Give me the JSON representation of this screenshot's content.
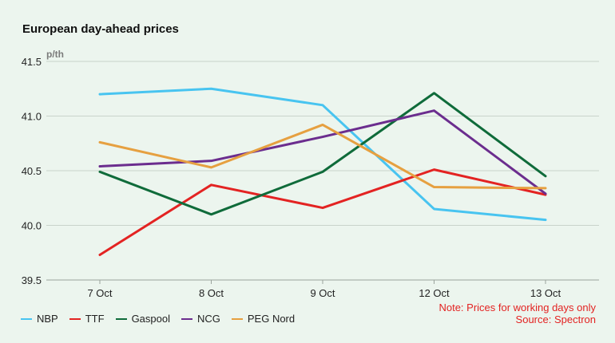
{
  "chart_data": {
    "type": "line",
    "title": "European day-ahead prices",
    "unit": "p/th",
    "categories": [
      "7 Oct",
      "8 Oct",
      "9 Oct",
      "12 Oct",
      "13 Oct"
    ],
    "ylim": [
      39.5,
      41.5
    ],
    "yticks": [
      "39.5",
      "40.0",
      "40.5",
      "41.0",
      "41.5"
    ],
    "grid": true,
    "legend_position": "bottom-left",
    "series": [
      {
        "name": "NBP",
        "color": "#48c4f0",
        "values": [
          41.2,
          41.25,
          41.1,
          40.15,
          40.05
        ]
      },
      {
        "name": "TTF",
        "color": "#e32322",
        "values": [
          39.73,
          40.37,
          40.16,
          40.51,
          40.28
        ]
      },
      {
        "name": "Gaspool",
        "color": "#0f6b3a",
        "values": [
          40.49,
          40.1,
          40.49,
          41.21,
          40.45
        ]
      },
      {
        "name": "NCG",
        "color": "#6b2d8e",
        "values": [
          40.54,
          40.59,
          40.81,
          41.05,
          40.29
        ]
      },
      {
        "name": "PEG Nord",
        "color": "#e6a040",
        "values": [
          40.76,
          40.53,
          40.92,
          40.35,
          40.34
        ]
      }
    ],
    "note": "Note: Prices for working days only",
    "source": "Source: Spectron"
  }
}
